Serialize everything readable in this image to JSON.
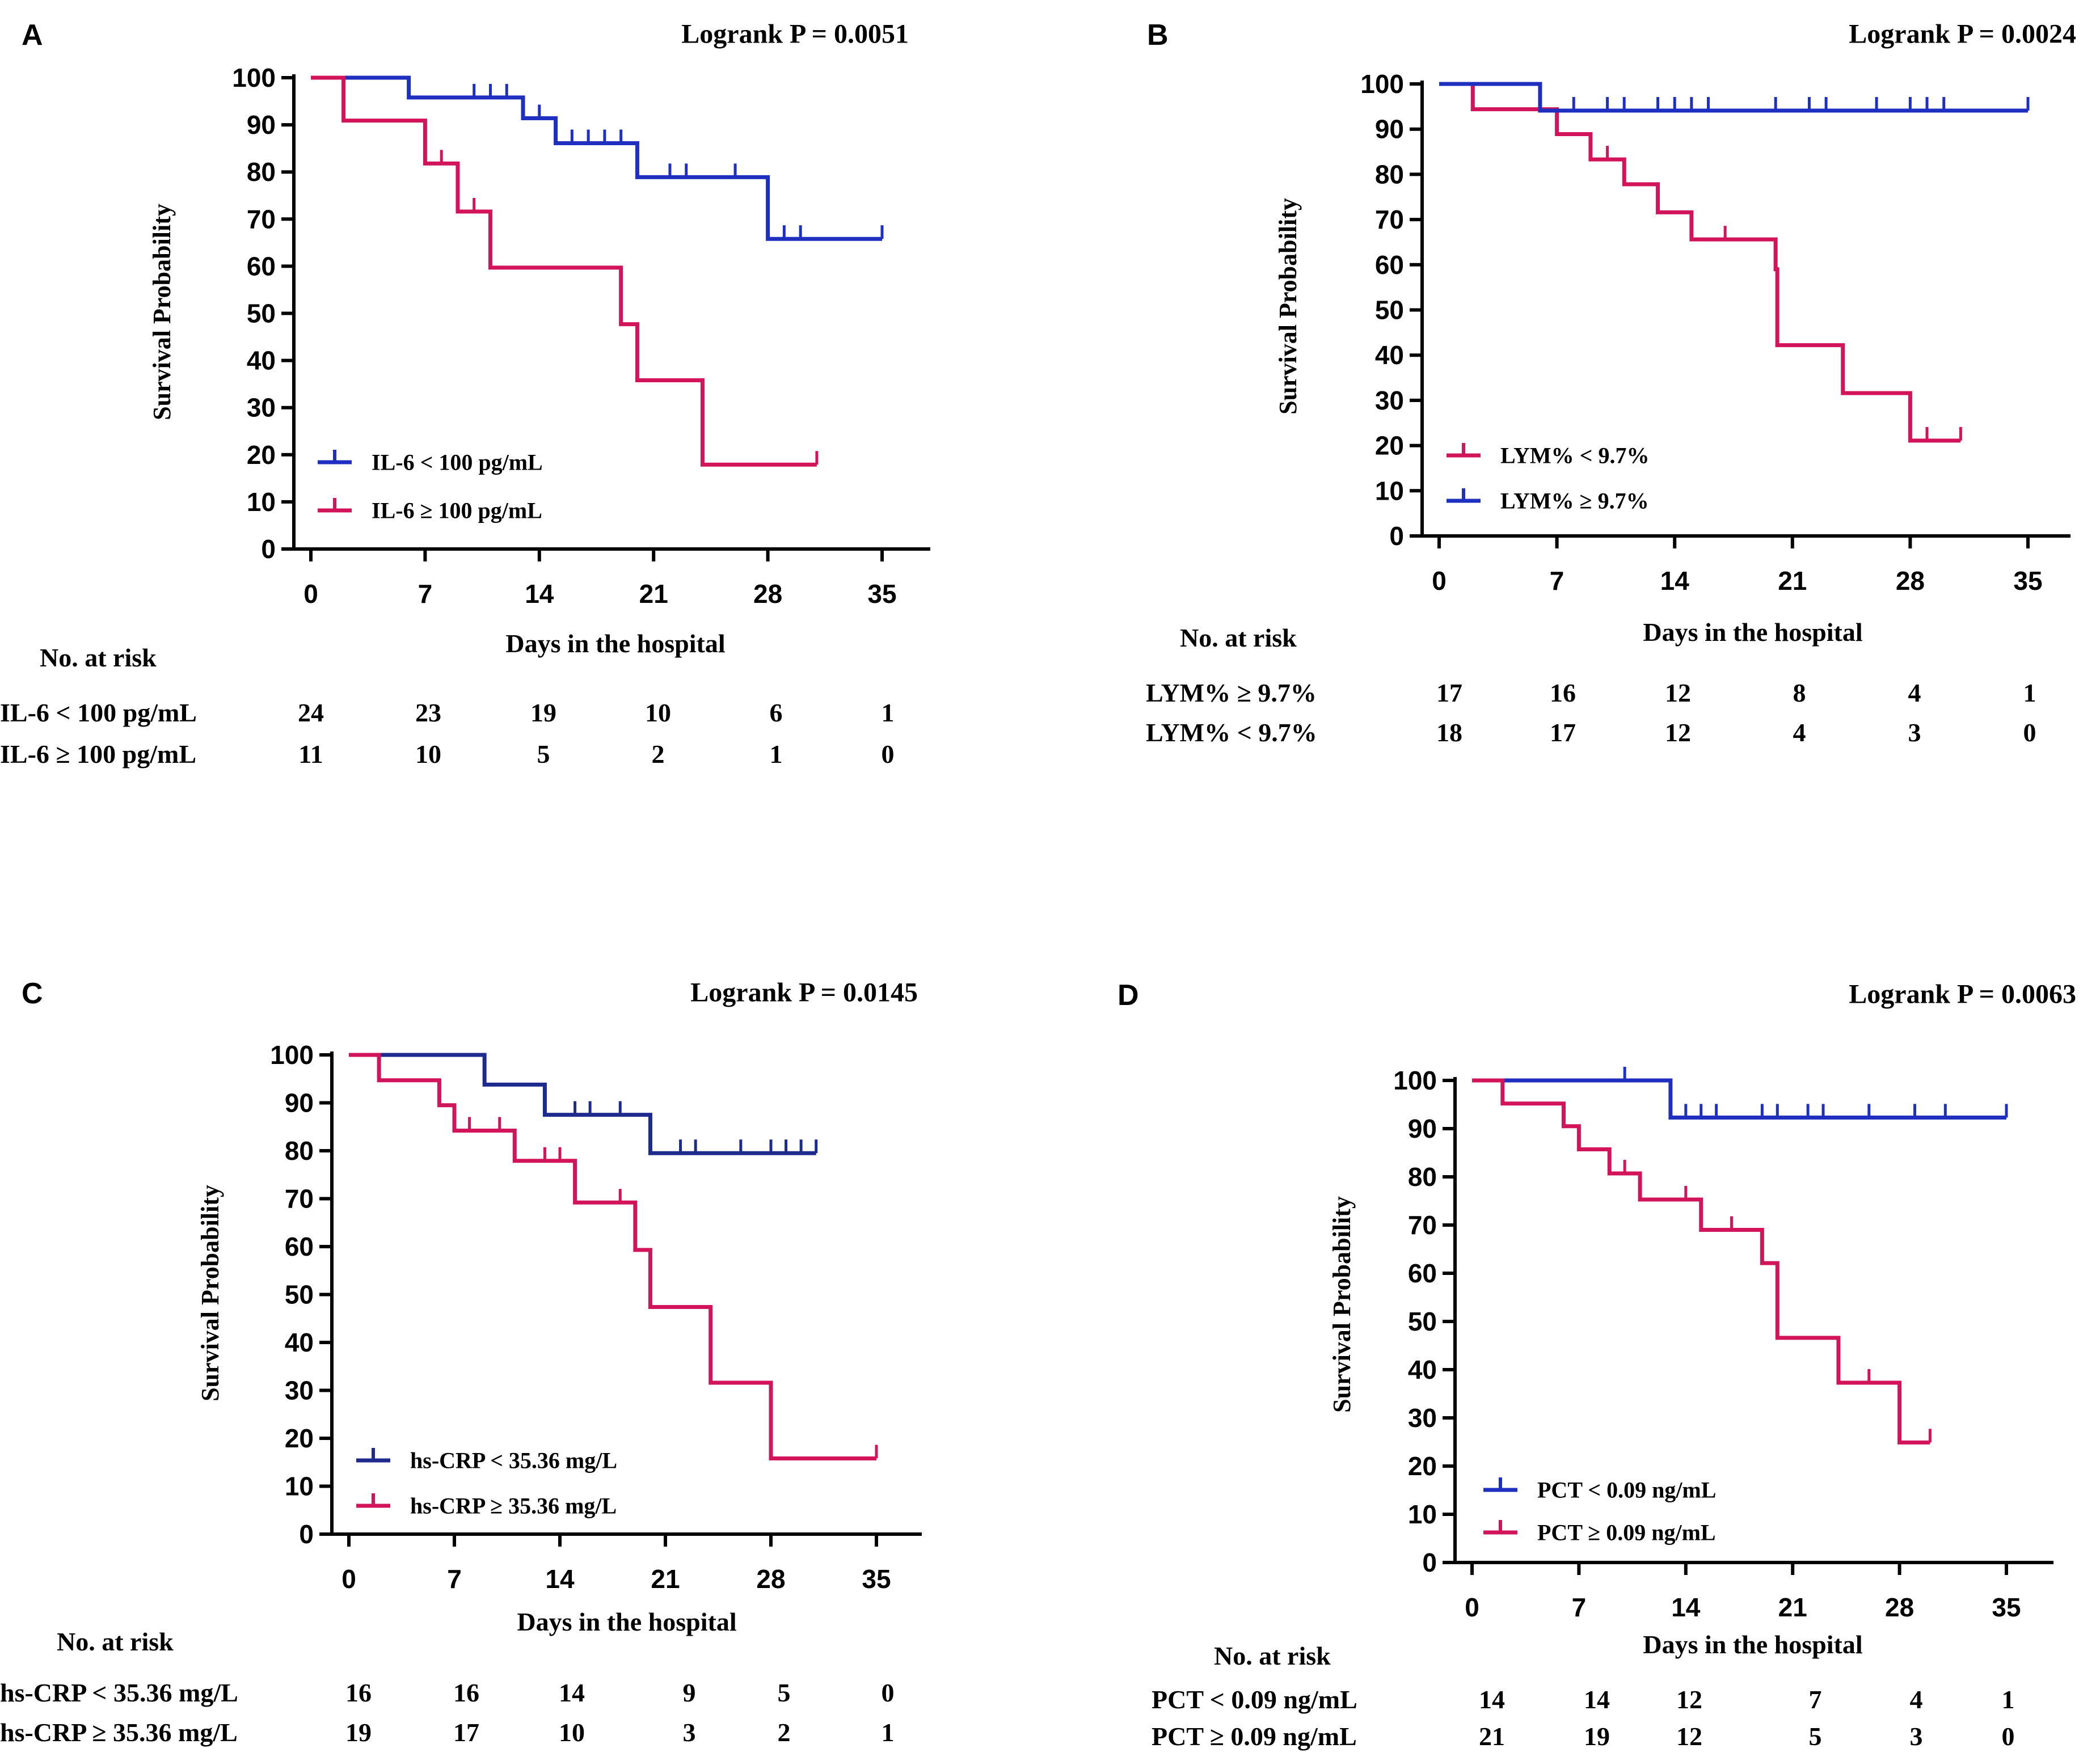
{
  "figure": {
    "colors": {
      "blue": "#1f2fbf",
      "navy": "#1e2a8c",
      "magenta": "#d2145a"
    }
  },
  "chart_data": [
    {
      "panel": "A",
      "type": "line",
      "subtype": "kaplan-meier",
      "title": "Logrank P = 0.0051",
      "xlabel": "Days in the hospital",
      "ylabel": "Survival Probability",
      "xlim": [
        0,
        35
      ],
      "ylim": [
        0,
        100
      ],
      "xticks": [
        0,
        7,
        14,
        21,
        28,
        35
      ],
      "yticks": [
        0,
        10,
        20,
        30,
        40,
        50,
        60,
        70,
        80,
        90,
        100
      ],
      "legend": "bottom-left",
      "series": [
        {
          "name": "IL-6 < 100 pg/mL",
          "color": "#1f2fbf",
          "steps": [
            [
              0,
              100
            ],
            [
              6,
              95.8
            ],
            [
              13,
              91.4
            ],
            [
              15,
              86.1
            ],
            [
              20,
              78.9
            ],
            [
              28,
              65.8
            ]
          ],
          "end": 35,
          "censors": [
            [
              10,
              95.8
            ],
            [
              11,
              95.8
            ],
            [
              12,
              95.8
            ],
            [
              14,
              91.4
            ],
            [
              16,
              86.1
            ],
            [
              17,
              86.1
            ],
            [
              18,
              86.1
            ],
            [
              19,
              86.1
            ],
            [
              22,
              78.9
            ],
            [
              23,
              78.9
            ],
            [
              26,
              78.9
            ],
            [
              29,
              65.8
            ],
            [
              30,
              65.8
            ],
            [
              35,
              65.8
            ]
          ]
        },
        {
          "name": "IL-6 ≥ 100 pg/mL",
          "color": "#d2145a",
          "steps": [
            [
              0,
              100
            ],
            [
              2,
              90.9
            ],
            [
              7,
              81.8
            ],
            [
              9,
              71.6
            ],
            [
              11,
              59.7
            ],
            [
              19,
              47.7
            ],
            [
              20,
              35.8
            ],
            [
              24,
              17.9
            ]
          ],
          "end": 31,
          "censors": [
            [
              8,
              81.8
            ],
            [
              10,
              71.6
            ],
            [
              31,
              17.9
            ]
          ]
        }
      ],
      "risk_table": {
        "title": "No. at risk",
        "times": [
          0,
          7,
          14,
          21,
          28,
          35
        ],
        "rows": [
          {
            "label": "IL-6 < 100 pg/mL",
            "counts": [
              "24",
              "23",
              "19",
              "10",
              "6",
              "1"
            ]
          },
          {
            "label": "IL-6 ≥ 100 pg/mL",
            "counts": [
              "11",
              "10",
              "5",
              "2",
              "1",
              "0"
            ]
          }
        ]
      }
    },
    {
      "panel": "B",
      "type": "line",
      "subtype": "kaplan-meier",
      "title": "Logrank P = 0.0024",
      "xlabel": "Days in the hospital",
      "ylabel": "Survival Probability",
      "xlim": [
        0,
        35
      ],
      "ylim": [
        0,
        100
      ],
      "xticks": [
        0,
        7,
        14,
        21,
        28,
        35
      ],
      "yticks": [
        0,
        10,
        20,
        30,
        40,
        50,
        60,
        70,
        80,
        90,
        100
      ],
      "legend": "bottom-left",
      "series": [
        {
          "name": "LYM% < 9.7%",
          "color": "#d2145a",
          "steps": [
            [
              0,
              100
            ],
            [
              2,
              94.4
            ],
            [
              7,
              88.9
            ],
            [
              9,
              83.3
            ],
            [
              11,
              77.8
            ],
            [
              13,
              71.6
            ],
            [
              15,
              65.6
            ],
            [
              20,
              59.0
            ],
            [
              20.1,
              42.2
            ],
            [
              24,
              31.6
            ],
            [
              28,
              21.1
            ]
          ],
          "end": 31,
          "censors": [
            [
              10,
              83.3
            ],
            [
              17,
              65.6
            ],
            [
              29,
              21.1
            ],
            [
              31,
              21.1
            ]
          ]
        },
        {
          "name": "LYM% ≥ 9.7%",
          "color": "#1f2fbf",
          "steps": [
            [
              0,
              100
            ],
            [
              6,
              94.1
            ]
          ],
          "end": 35,
          "censors": [
            [
              8,
              94.1
            ],
            [
              10,
              94.1
            ],
            [
              11,
              94.1
            ],
            [
              13,
              94.1
            ],
            [
              14,
              94.1
            ],
            [
              15,
              94.1
            ],
            [
              16,
              94.1
            ],
            [
              20,
              94.1
            ],
            [
              22,
              94.1
            ],
            [
              23,
              94.1
            ],
            [
              26,
              94.1
            ],
            [
              28,
              94.1
            ],
            [
              29,
              94.1
            ],
            [
              30,
              94.1
            ],
            [
              35,
              94.1
            ]
          ]
        }
      ],
      "risk_table": {
        "title": "No. at risk",
        "times": [
          0,
          7,
          14,
          21,
          28,
          35
        ],
        "rows": [
          {
            "label": "LYM% ≥ 9.7%",
            "counts": [
              "17",
              "16",
              "12",
              "8",
              "4",
              "1"
            ]
          },
          {
            "label": "LYM% < 9.7%",
            "counts": [
              "18",
              "17",
              "12",
              "4",
              "3",
              "0"
            ]
          }
        ]
      }
    },
    {
      "panel": "C",
      "type": "line",
      "subtype": "kaplan-meier",
      "title": "Logrank P = 0.0145",
      "xlabel": "Days in the hospital",
      "ylabel": "Survival Probability",
      "xlim": [
        0,
        35
      ],
      "ylim": [
        0,
        100
      ],
      "xticks": [
        0,
        7,
        14,
        21,
        28,
        35
      ],
      "yticks": [
        0,
        10,
        20,
        30,
        40,
        50,
        60,
        70,
        80,
        90,
        100
      ],
      "legend": "bottom-left",
      "series": [
        {
          "name": "hs-CRP < 35.36 mg/L",
          "color": "#1e2a8c",
          "steps": [
            [
              0,
              100
            ],
            [
              9,
              93.8
            ],
            [
              13,
              87.5
            ],
            [
              20,
              79.5
            ]
          ],
          "end": 31,
          "censors": [
            [
              15,
              87.5
            ],
            [
              16,
              87.5
            ],
            [
              18,
              87.5
            ],
            [
              22,
              79.5
            ],
            [
              23,
              79.5
            ],
            [
              26,
              79.5
            ],
            [
              28,
              79.5
            ],
            [
              29,
              79.5
            ],
            [
              30,
              79.5
            ],
            [
              31,
              79.5
            ]
          ]
        },
        {
          "name": "hs-CRP ≥ 35.36 mg/L",
          "color": "#d2145a",
          "steps": [
            [
              0,
              100
            ],
            [
              2,
              94.7
            ],
            [
              6,
              89.5
            ],
            [
              7,
              84.2
            ],
            [
              11,
              77.9
            ],
            [
              15,
              69.2
            ],
            [
              19,
              59.3
            ],
            [
              20,
              47.4
            ],
            [
              24,
              31.6
            ],
            [
              28,
              15.8
            ]
          ],
          "end": 35,
          "censors": [
            [
              8,
              84.2
            ],
            [
              10,
              84.2
            ],
            [
              13,
              77.9
            ],
            [
              14,
              77.9
            ],
            [
              18,
              69.2
            ],
            [
              35,
              15.8
            ]
          ]
        }
      ],
      "risk_table": {
        "title": "No. at risk",
        "times": [
          0,
          7,
          14,
          21,
          28,
          35
        ],
        "rows": [
          {
            "label": "hs-CRP < 35.36 mg/L",
            "counts": [
              "16",
              "16",
              "14",
              "9",
              "5",
              "0"
            ]
          },
          {
            "label": "hs-CRP ≥ 35.36 mg/L",
            "counts": [
              "19",
              "17",
              "10",
              "3",
              "2",
              "1"
            ]
          }
        ]
      }
    },
    {
      "panel": "D",
      "type": "line",
      "subtype": "kaplan-meier",
      "title": "Logrank P = 0.0063",
      "xlabel": "Days in the hospital",
      "ylabel": "Survival Probability",
      "xlim": [
        0,
        35
      ],
      "ylim": [
        0,
        100
      ],
      "xticks": [
        0,
        7,
        14,
        21,
        28,
        35
      ],
      "yticks": [
        0,
        10,
        20,
        30,
        40,
        50,
        60,
        70,
        80,
        90,
        100
      ],
      "legend": "bottom-left",
      "series": [
        {
          "name": "PCT < 0.09 ng/mL",
          "color": "#1f2fbf",
          "steps": [
            [
              0,
              100
            ],
            [
              13,
              92.3
            ]
          ],
          "end": 35,
          "censors": [
            [
              10,
              100
            ],
            [
              14,
              92.3
            ],
            [
              15,
              92.3
            ],
            [
              16,
              92.3
            ],
            [
              19,
              92.3
            ],
            [
              20,
              92.3
            ],
            [
              22,
              92.3
            ],
            [
              23,
              92.3
            ],
            [
              26,
              92.3
            ],
            [
              29,
              92.3
            ],
            [
              31,
              92.3
            ],
            [
              35,
              92.3
            ]
          ]
        },
        {
          "name": "PCT ≥ 0.09 ng/mL",
          "color": "#d2145a",
          "steps": [
            [
              0,
              100
            ],
            [
              2,
              95.2
            ],
            [
              6,
              90.5
            ],
            [
              7,
              85.7
            ],
            [
              9,
              80.7
            ],
            [
              11,
              75.3
            ],
            [
              15,
              69.0
            ],
            [
              19,
              62.1
            ],
            [
              20,
              46.6
            ],
            [
              24,
              37.3
            ],
            [
              28,
              24.9
            ]
          ],
          "end": 30,
          "censors": [
            [
              10,
              80.7
            ],
            [
              14,
              75.3
            ],
            [
              17,
              69.0
            ],
            [
              26,
              37.3
            ],
            [
              30,
              24.9
            ]
          ]
        }
      ],
      "risk_table": {
        "title": "No. at risk",
        "times": [
          0,
          7,
          14,
          21,
          28,
          35
        ],
        "rows": [
          {
            "label": "PCT < 0.09 ng/mL",
            "counts": [
              "14",
              "14",
              "12",
              "7",
              "4",
              "1"
            ]
          },
          {
            "label": "PCT ≥ 0.09 ng/mL",
            "counts": [
              "21",
              "19",
              "12",
              "5",
              "3",
              "0"
            ]
          }
        ]
      }
    }
  ]
}
